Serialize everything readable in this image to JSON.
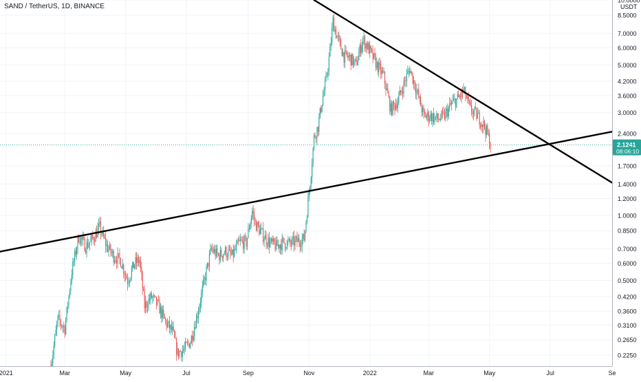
{
  "chart_data": {
    "type": "candlestick",
    "title": "SAND / TetherUS, 1D, BINANCE",
    "y_unit": "USDT",
    "y_scale": "log",
    "ylim": [
      0.2,
      10.0
    ],
    "xlim": [
      "2020-12-26",
      "2022-09-01"
    ],
    "x_ticks": [
      {
        "date": "2021-01-01",
        "label": "2021"
      },
      {
        "date": "2021-03-01",
        "label": "Mar"
      },
      {
        "date": "2021-05-01",
        "label": "May"
      },
      {
        "date": "2021-07-01",
        "label": "Jul"
      },
      {
        "date": "2021-09-01",
        "label": "Sep"
      },
      {
        "date": "2021-11-01",
        "label": "Nov"
      },
      {
        "date": "2022-01-01",
        "label": "2022"
      },
      {
        "date": "2022-03-01",
        "label": "Mar"
      },
      {
        "date": "2022-05-01",
        "label": "May"
      },
      {
        "date": "2022-07-01",
        "label": "Jul"
      },
      {
        "date": "2022-09-01",
        "label": "Se"
      }
    ],
    "y_ticks": [
      "10.0000",
      "8.5000",
      "7.0000",
      "6.0000",
      "5.0000",
      "4.2000",
      "3.6000",
      "3.0000",
      "2.4000",
      "1.7000",
      "1.4000",
      "1.2000",
      "1.0000",
      "0.8500",
      "0.7000",
      "0.6000",
      "0.5000",
      "0.4200",
      "0.3600",
      "0.3100",
      "0.2650",
      "0.2250"
    ],
    "last_price": "2.1241",
    "countdown": "08:06:10",
    "trendlines": [
      {
        "name": "support",
        "points": [
          [
            "2020-12-26",
            0.68
          ],
          [
            "2022-09-01",
            2.45
          ]
        ]
      },
      {
        "name": "resistance",
        "points": [
          [
            "2021-11-06",
            10.0
          ],
          [
            "2022-09-01",
            1.42
          ]
        ]
      }
    ],
    "price_path": [
      [
        "2021-02-15",
        0.2
      ],
      [
        "2021-02-22",
        0.33
      ],
      [
        "2021-03-01",
        0.3
      ],
      [
        "2021-03-08",
        0.55
      ],
      [
        "2021-03-15",
        0.8
      ],
      [
        "2021-03-22",
        0.72
      ],
      [
        "2021-03-29",
        0.78
      ],
      [
        "2021-04-05",
        0.88
      ],
      [
        "2021-04-12",
        0.72
      ],
      [
        "2021-04-19",
        0.65
      ],
      [
        "2021-04-26",
        0.62
      ],
      [
        "2021-05-03",
        0.5
      ],
      [
        "2021-05-10",
        0.6
      ],
      [
        "2021-05-15",
        0.62
      ],
      [
        "2021-05-20",
        0.38
      ],
      [
        "2021-05-27",
        0.42
      ],
      [
        "2021-06-03",
        0.38
      ],
      [
        "2021-06-10",
        0.32
      ],
      [
        "2021-06-17",
        0.29
      ],
      [
        "2021-06-22",
        0.23
      ],
      [
        "2021-06-29",
        0.24
      ],
      [
        "2021-07-05",
        0.26
      ],
      [
        "2021-07-12",
        0.35
      ],
      [
        "2021-07-19",
        0.5
      ],
      [
        "2021-07-26",
        0.7
      ],
      [
        "2021-08-02",
        0.65
      ],
      [
        "2021-08-09",
        0.68
      ],
      [
        "2021-08-16",
        0.65
      ],
      [
        "2021-08-23",
        0.75
      ],
      [
        "2021-08-30",
        0.75
      ],
      [
        "2021-09-05",
        1.05
      ],
      [
        "2021-09-08",
        0.92
      ],
      [
        "2021-09-15",
        0.82
      ],
      [
        "2021-09-22",
        0.75
      ],
      [
        "2021-09-29",
        0.72
      ],
      [
        "2021-10-06",
        0.75
      ],
      [
        "2021-10-13",
        0.74
      ],
      [
        "2021-10-20",
        0.76
      ],
      [
        "2021-10-27",
        0.78
      ],
      [
        "2021-10-30",
        1.05
      ],
      [
        "2021-11-03",
        1.6
      ],
      [
        "2021-11-06",
        2.3
      ],
      [
        "2021-11-10",
        2.6
      ],
      [
        "2021-11-14",
        3.4
      ],
      [
        "2021-11-18",
        4.2
      ],
      [
        "2021-11-22",
        5.8
      ],
      [
        "2021-11-25",
        8.0
      ],
      [
        "2021-11-28",
        7.0
      ],
      [
        "2021-12-02",
        6.2
      ],
      [
        "2021-12-06",
        5.5
      ],
      [
        "2021-12-12",
        5.4
      ],
      [
        "2021-12-18",
        5.0
      ],
      [
        "2021-12-25",
        6.6
      ],
      [
        "2022-01-01",
        5.8
      ],
      [
        "2022-01-08",
        5.0
      ],
      [
        "2022-01-15",
        4.4
      ],
      [
        "2022-01-22",
        3.1
      ],
      [
        "2022-01-29",
        3.4
      ],
      [
        "2022-02-05",
        4.2
      ],
      [
        "2022-02-10",
        4.8
      ],
      [
        "2022-02-17",
        3.8
      ],
      [
        "2022-02-24",
        2.9
      ],
      [
        "2022-03-03",
        2.9
      ],
      [
        "2022-03-10",
        2.8
      ],
      [
        "2022-03-17",
        2.9
      ],
      [
        "2022-03-24",
        3.3
      ],
      [
        "2022-03-31",
        3.5
      ],
      [
        "2022-04-05",
        3.8
      ],
      [
        "2022-04-12",
        3.1
      ],
      [
        "2022-04-19",
        2.9
      ],
      [
        "2022-04-26",
        2.6
      ],
      [
        "2022-04-30",
        2.3
      ],
      [
        "2022-05-02",
        2.12
      ]
    ]
  }
}
